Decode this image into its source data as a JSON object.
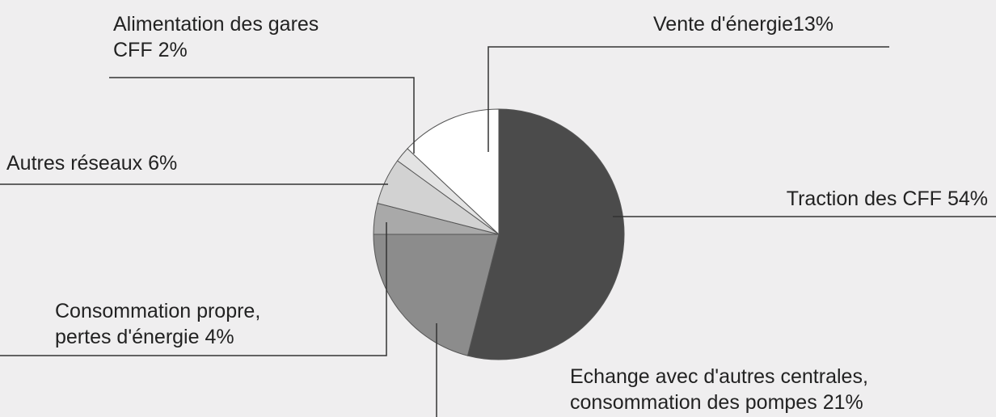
{
  "chart_data": {
    "type": "pie",
    "categories": [
      "Traction des CFF",
      "Echange avec d'autres centrales, consommation des pompes",
      "Consommation propre, pertes d'énergie",
      "Autres réseaux",
      "Alimentation des gares CFF",
      "Vente d'énergie"
    ],
    "values": [
      54,
      21,
      4,
      6,
      2,
      13
    ],
    "value_labels": [
      "54%",
      "21%",
      "4%",
      "6%",
      "2%",
      "13%"
    ],
    "colors": [
      "#4b4b4b",
      "#8c8c8c",
      "#a9a9a9",
      "#d2d2d2",
      "#e3e3e3",
      "#ffffff"
    ]
  }
}
